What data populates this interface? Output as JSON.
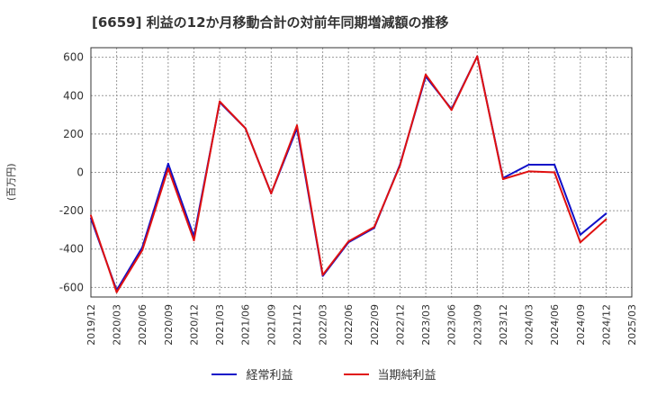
{
  "title": "[6659]  利益の12か月移動合計の対前年同期増減額の推移",
  "chart_data": {
    "type": "line",
    "title": "[6659]  利益の12か月移動合計の対前年同期増減額の推移",
    "xlabel": "",
    "ylabel": "(百万円)",
    "ylim": [
      -650,
      650
    ],
    "yticks": [
      -600,
      -400,
      -200,
      0,
      200,
      400,
      600
    ],
    "categories": [
      "2019/12",
      "2020/03",
      "2020/06",
      "2020/09",
      "2020/12",
      "2021/03",
      "2021/06",
      "2021/09",
      "2021/12",
      "2022/03",
      "2022/06",
      "2022/09",
      "2022/12",
      "2023/03",
      "2023/06",
      "2023/09",
      "2023/12",
      "2024/03",
      "2024/06",
      "2024/09",
      "2024/12",
      "2025/03"
    ],
    "series": [
      {
        "name": "経常利益",
        "color": "#1010c8",
        "values": [
          -240,
          -615,
          -390,
          45,
          -335,
          365,
          230,
          -110,
          230,
          -540,
          -365,
          -290,
          40,
          500,
          330,
          605,
          -30,
          40,
          40,
          -325,
          -215,
          null
        ]
      },
      {
        "name": "当期純利益",
        "color": "#e01010",
        "values": [
          -225,
          -625,
          -405,
          20,
          -355,
          370,
          230,
          -110,
          245,
          -535,
          -360,
          -285,
          35,
          510,
          325,
          605,
          -35,
          5,
          0,
          -365,
          -245,
          null
        ]
      }
    ],
    "grid": true,
    "legend": "bottom"
  }
}
